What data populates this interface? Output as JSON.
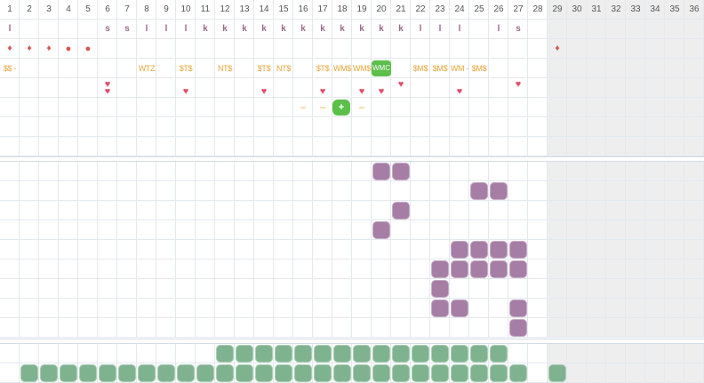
{
  "days": [
    "1",
    "2",
    "3",
    "4",
    "5",
    "6",
    "7",
    "8",
    "9",
    "10",
    "11",
    "12",
    "13",
    "14",
    "15",
    "16",
    "17",
    "18",
    "19",
    "20",
    "21",
    "22",
    "23",
    "24",
    "25",
    "26",
    "27",
    "28",
    "29",
    "30",
    "31",
    "32",
    "33",
    "34",
    "35",
    "36"
  ],
  "current_day_limit": 28,
  "colors": {
    "grid_line": "#e4e9ee",
    "future_bg": "#eeeeee",
    "period": "#d9534f",
    "note": "#e8a63a",
    "heart": "#e0506a",
    "purple": "#a67ea5",
    "green": "#7fb38f",
    "bright_green": "#5cbf4a"
  },
  "phase_row": [
    {
      "day": 1,
      "t": "l"
    },
    {
      "day": 6,
      "t": "s"
    },
    {
      "day": 7,
      "t": "s"
    },
    {
      "day": 8,
      "t": "l"
    },
    {
      "day": 9,
      "t": "l"
    },
    {
      "day": 10,
      "t": "l"
    },
    {
      "day": 11,
      "t": "k"
    },
    {
      "day": 12,
      "t": "k"
    },
    {
      "day": 13,
      "t": "k"
    },
    {
      "day": 14,
      "t": "k"
    },
    {
      "day": 15,
      "t": "k"
    },
    {
      "day": 16,
      "t": "k"
    },
    {
      "day": 17,
      "t": "k"
    },
    {
      "day": 18,
      "t": "k"
    },
    {
      "day": 19,
      "t": "k"
    },
    {
      "day": 20,
      "t": "k"
    },
    {
      "day": 21,
      "t": "k"
    },
    {
      "day": 22,
      "t": "l"
    },
    {
      "day": 23,
      "t": "l"
    },
    {
      "day": 24,
      "t": "l"
    },
    {
      "day": 26,
      "t": "l"
    },
    {
      "day": 27,
      "t": "s"
    }
  ],
  "period_row": [
    {
      "day": 1,
      "kind": "drop",
      "icon": "drop-icon"
    },
    {
      "day": 2,
      "kind": "drop",
      "icon": "drop-icon"
    },
    {
      "day": 3,
      "kind": "drop",
      "icon": "drop-icon"
    },
    {
      "day": 4,
      "kind": "dot",
      "icon": "dot-icon"
    },
    {
      "day": 5,
      "kind": "dot",
      "icon": "dot-icon"
    },
    {
      "day": 29,
      "kind": "drop",
      "icon": "drop-icon"
    }
  ],
  "notes_row": [
    {
      "day": 1,
      "t": "$$ -"
    },
    {
      "day": 8,
      "t": "WTZ"
    },
    {
      "day": 10,
      "t": "$T$"
    },
    {
      "day": 12,
      "t": "NT$"
    },
    {
      "day": 14,
      "t": "$T$"
    },
    {
      "day": 15,
      "t": "NT$"
    },
    {
      "day": 17,
      "t": "$T$"
    },
    {
      "day": 18,
      "t": "WM$"
    },
    {
      "day": 19,
      "t": "WM$"
    },
    {
      "day": 22,
      "t": "$M$"
    },
    {
      "day": 23,
      "t": "$M$"
    },
    {
      "day": 24,
      "t": "WM -"
    },
    {
      "day": 25,
      "t": "$M$"
    }
  ],
  "highlight_note": {
    "day": 20,
    "t": "WMC"
  },
  "hearts": [
    {
      "day": 6,
      "row": 0,
      "glyph": "♥"
    },
    {
      "day": 6,
      "row": 1,
      "glyph": "♥"
    },
    {
      "day": 10,
      "row": 1,
      "glyph": "♥"
    },
    {
      "day": 14,
      "row": 1,
      "glyph": "♥"
    },
    {
      "day": 17,
      "row": 1,
      "glyph": "♥"
    },
    {
      "day": 19,
      "row": 1,
      "glyph": "♥"
    },
    {
      "day": 20,
      "row": 1,
      "glyph": "♥"
    },
    {
      "day": 21,
      "row": 0,
      "glyph": "♥"
    },
    {
      "day": 24,
      "row": 1,
      "glyph": "♥"
    },
    {
      "day": 27,
      "row": 0,
      "glyph": "♥"
    }
  ],
  "dash_row": [
    {
      "day": 16,
      "t": "–"
    },
    {
      "day": 17,
      "t": "–"
    },
    {
      "day": 19,
      "t": "–"
    }
  ],
  "plus_marker": {
    "day": 18,
    "t": "+"
  },
  "purple_blobs": [
    {
      "day": 20,
      "row": 0
    },
    {
      "day": 21,
      "row": 0
    },
    {
      "day": 25,
      "row": 1
    },
    {
      "day": 26,
      "row": 1
    },
    {
      "day": 21,
      "row": 2
    },
    {
      "day": 20,
      "row": 3
    },
    {
      "day": 24,
      "row": 4
    },
    {
      "day": 25,
      "row": 4
    },
    {
      "day": 26,
      "row": 4
    },
    {
      "day": 27,
      "row": 4
    },
    {
      "day": 23,
      "row": 5
    },
    {
      "day": 24,
      "row": 5
    },
    {
      "day": 25,
      "row": 5
    },
    {
      "day": 26,
      "row": 5
    },
    {
      "day": 27,
      "row": 5
    },
    {
      "day": 23,
      "row": 6
    },
    {
      "day": 23,
      "row": 7
    },
    {
      "day": 24,
      "row": 7
    },
    {
      "day": 27,
      "row": 7
    },
    {
      "day": 27,
      "row": 8
    }
  ],
  "green_blobs_row1": [
    12,
    13,
    14,
    15,
    16,
    17,
    18,
    19,
    20,
    21,
    22,
    23,
    24,
    25,
    26
  ],
  "green_blobs_row2": [
    2,
    3,
    4,
    5,
    6,
    7,
    8,
    9,
    10,
    11,
    12,
    13,
    14,
    15,
    16,
    17,
    18,
    19,
    20,
    21,
    22,
    23,
    24,
    25,
    26,
    27,
    29
  ]
}
